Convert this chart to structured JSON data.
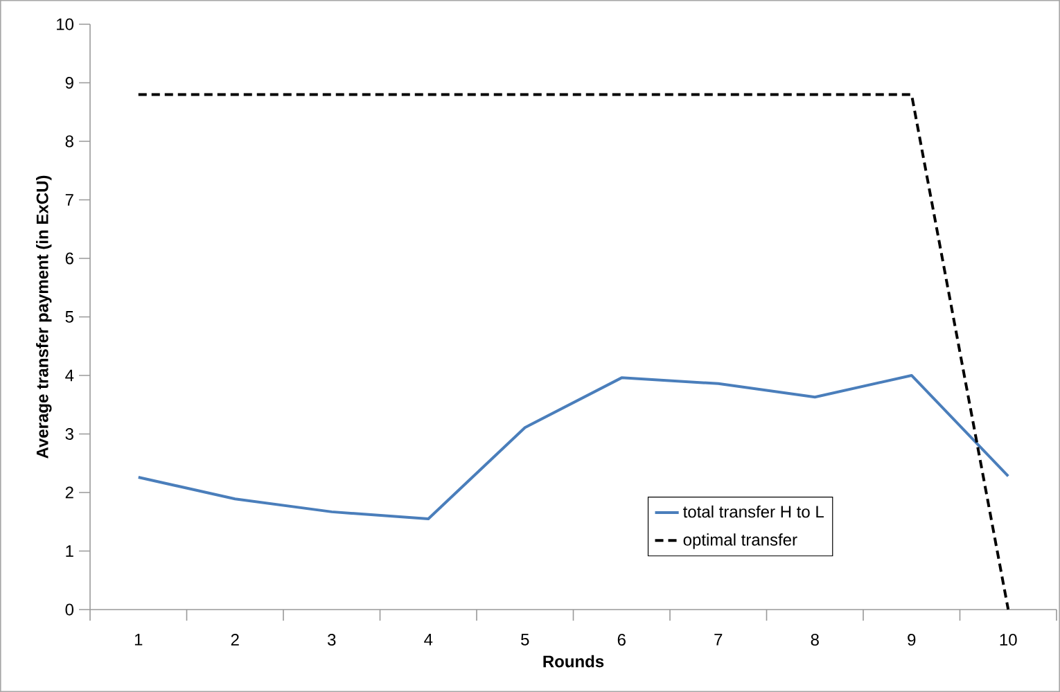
{
  "chart_data": {
    "type": "line",
    "xlabel": "Rounds",
    "ylabel": "Average transfer payment (in ExCU)",
    "categories": [
      "1",
      "2",
      "3",
      "4",
      "5",
      "6",
      "7",
      "8",
      "9",
      "10"
    ],
    "series": [
      {
        "name": "total transfer H to L",
        "color": "#4a7ebb",
        "line_style": "solid",
        "values": [
          2.26,
          1.89,
          1.67,
          1.55,
          3.11,
          3.96,
          3.86,
          3.63,
          4.0,
          2.28
        ]
      },
      {
        "name": "optimal transfer",
        "color": "#000000",
        "line_style": "dashed",
        "values": [
          8.8,
          8.8,
          8.8,
          8.8,
          8.8,
          8.8,
          8.8,
          8.8,
          8.8,
          0
        ]
      }
    ],
    "ylim": [
      0,
      10
    ],
    "yticks": [
      0,
      1,
      2,
      3,
      4,
      5,
      6,
      7,
      8,
      9,
      10
    ],
    "grid": false,
    "legend": "bottom right",
    "marker": "none"
  }
}
